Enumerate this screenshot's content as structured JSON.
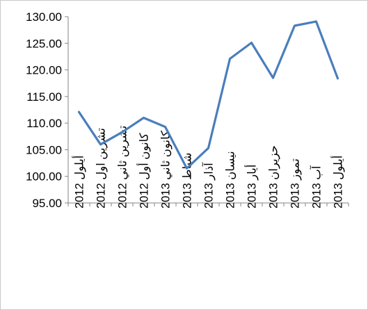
{
  "chart_data": {
    "type": "line",
    "title": "",
    "xlabel": "",
    "ylabel": "",
    "categories": [
      "أيلول 2012",
      "تشرين اول 2012",
      "تشرين ثاني 2012",
      "كانون أول 2012",
      "كانون ثاني 2013",
      "شباط 2013",
      "آذار 2013",
      "نيسان 2013",
      "أيار 2013",
      "حزيران 2013",
      "تموز 2013",
      "آب 2013",
      "أيلول 2013"
    ],
    "series": [
      {
        "values": [
          112.1,
          106.0,
          108.3,
          111.0,
          109.3,
          101.5,
          105.3,
          122.1,
          125.1,
          118.5,
          128.3,
          129.1,
          118.4
        ]
      }
    ],
    "ylim": [
      95,
      130
    ],
    "yticks": [
      "95.00",
      "100.00",
      "105.00",
      "110.00",
      "115.00",
      "120.00",
      "125.00",
      "130.00"
    ],
    "grid": false,
    "legend": "none",
    "line_color": "#4a7ebb",
    "axis_color": "#868686"
  }
}
